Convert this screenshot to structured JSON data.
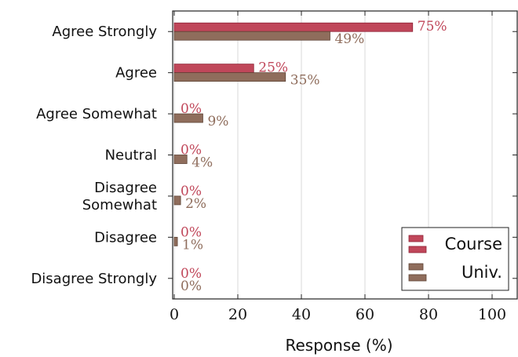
{
  "chart_data": {
    "type": "bar",
    "orientation": "horizontal",
    "categories": [
      [
        "Agree Strongly"
      ],
      [
        "Agree"
      ],
      [
        "Agree Somewhat"
      ],
      [
        "Neutral"
      ],
      [
        "Disagree",
        "Somewhat"
      ],
      [
        "Disagree"
      ],
      [
        "Disagree Strongly"
      ]
    ],
    "series": [
      {
        "name": "Course",
        "values": [
          75,
          25,
          0,
          0,
          0,
          0,
          0
        ],
        "labels": [
          "75%",
          "25%",
          "0%",
          "0%",
          "0%",
          "0%",
          "0%"
        ],
        "color": "#c0475a"
      },
      {
        "name": "Univ.",
        "values": [
          49,
          35,
          9,
          4,
          2,
          1,
          0
        ],
        "labels": [
          "49%",
          "35%",
          "9%",
          "4%",
          "2%",
          "1%",
          "0%"
        ],
        "color": "#8f6d5c"
      }
    ],
    "xlabel": "Response (%)",
    "ylabel": "",
    "xlim": [
      0,
      108
    ],
    "xticks": [
      0,
      20,
      40,
      60,
      80,
      100
    ],
    "grid": "vertical",
    "legend": "bottom-right"
  },
  "colors": {
    "course": "#c0475a",
    "univ": "#8f6d5c",
    "grid": "#d9d9d9",
    "axis": "#222222"
  }
}
